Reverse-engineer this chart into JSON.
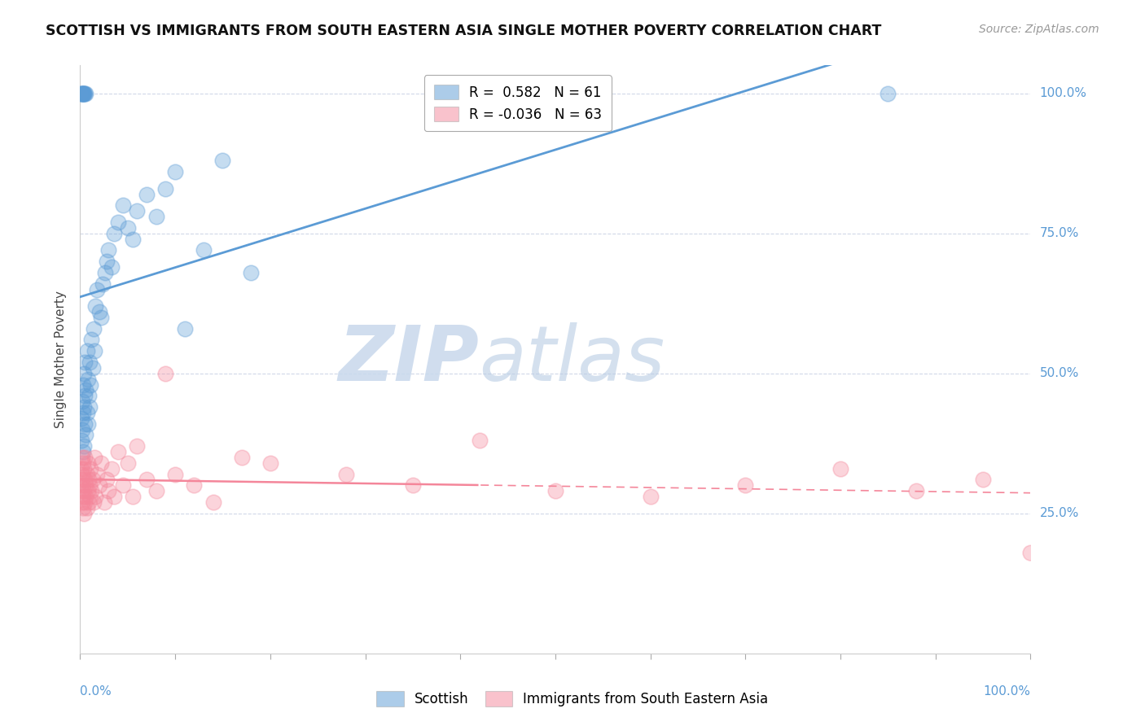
{
  "title": "SCOTTISH VS IMMIGRANTS FROM SOUTH EASTERN ASIA SINGLE MOTHER POVERTY CORRELATION CHART",
  "source": "Source: ZipAtlas.com",
  "ylabel": "Single Mother Poverty",
  "legend_blue_R": "0.582",
  "legend_blue_N": "61",
  "legend_pink_R": "-0.036",
  "legend_pink_N": "63",
  "blue_color": "#5b9bd5",
  "pink_color": "#f4869a",
  "blue_label": "Scottish",
  "pink_label": "Immigrants from South Eastern Asia",
  "watermark_zip": "ZIP",
  "watermark_atlas": "atlas",
  "background_color": "#ffffff",
  "grid_color": "#d0d8e8",
  "xlim": [
    0.0,
    1.0
  ],
  "ylim": [
    0.0,
    1.05
  ],
  "blue_scatter_x": [
    0.001,
    0.001,
    0.002,
    0.002,
    0.003,
    0.003,
    0.003,
    0.004,
    0.004,
    0.004,
    0.005,
    0.005,
    0.005,
    0.006,
    0.006,
    0.007,
    0.007,
    0.008,
    0.008,
    0.009,
    0.01,
    0.01,
    0.011,
    0.012,
    0.013,
    0.014,
    0.015,
    0.016,
    0.018,
    0.02,
    0.022,
    0.024,
    0.026,
    0.028,
    0.03,
    0.033,
    0.036,
    0.04,
    0.045,
    0.05,
    0.055,
    0.06,
    0.07,
    0.08,
    0.09,
    0.1,
    0.11,
    0.13,
    0.15,
    0.18,
    0.001,
    0.001,
    0.002,
    0.002,
    0.003,
    0.003,
    0.004,
    0.004,
    0.005,
    0.006,
    0.85
  ],
  "blue_scatter_y": [
    0.38,
    0.42,
    0.4,
    0.45,
    0.36,
    0.43,
    0.48,
    0.37,
    0.44,
    0.5,
    0.41,
    0.46,
    0.52,
    0.39,
    0.47,
    0.43,
    0.54,
    0.41,
    0.49,
    0.46,
    0.44,
    0.52,
    0.48,
    0.56,
    0.51,
    0.58,
    0.54,
    0.62,
    0.65,
    0.61,
    0.6,
    0.66,
    0.68,
    0.7,
    0.72,
    0.69,
    0.75,
    0.77,
    0.8,
    0.76,
    0.74,
    0.79,
    0.82,
    0.78,
    0.83,
    0.86,
    0.58,
    0.72,
    0.88,
    0.68,
    1.0,
    1.0,
    1.0,
    1.0,
    1.0,
    1.0,
    1.0,
    1.0,
    1.0,
    1.0,
    1.0
  ],
  "pink_scatter_x": [
    0.001,
    0.001,
    0.001,
    0.002,
    0.002,
    0.002,
    0.003,
    0.003,
    0.003,
    0.003,
    0.004,
    0.004,
    0.004,
    0.005,
    0.005,
    0.005,
    0.006,
    0.006,
    0.007,
    0.007,
    0.008,
    0.008,
    0.009,
    0.009,
    0.01,
    0.01,
    0.011,
    0.012,
    0.013,
    0.014,
    0.015,
    0.016,
    0.018,
    0.02,
    0.022,
    0.025,
    0.028,
    0.03,
    0.033,
    0.036,
    0.04,
    0.045,
    0.05,
    0.055,
    0.06,
    0.07,
    0.08,
    0.09,
    0.1,
    0.12,
    0.14,
    0.17,
    0.2,
    0.28,
    0.35,
    0.42,
    0.5,
    0.6,
    0.7,
    0.8,
    0.88,
    0.95,
    1.0
  ],
  "pink_scatter_y": [
    0.31,
    0.29,
    0.33,
    0.27,
    0.32,
    0.35,
    0.28,
    0.3,
    0.34,
    0.26,
    0.29,
    0.33,
    0.25,
    0.31,
    0.27,
    0.35,
    0.3,
    0.28,
    0.32,
    0.26,
    0.29,
    0.34,
    0.27,
    0.31,
    0.3,
    0.28,
    0.33,
    0.29,
    0.31,
    0.27,
    0.35,
    0.28,
    0.32,
    0.3,
    0.34,
    0.27,
    0.31,
    0.29,
    0.33,
    0.28,
    0.36,
    0.3,
    0.34,
    0.28,
    0.37,
    0.31,
    0.29,
    0.5,
    0.32,
    0.3,
    0.27,
    0.35,
    0.34,
    0.32,
    0.3,
    0.38,
    0.29,
    0.28,
    0.3,
    0.33,
    0.29,
    0.31,
    0.18
  ]
}
